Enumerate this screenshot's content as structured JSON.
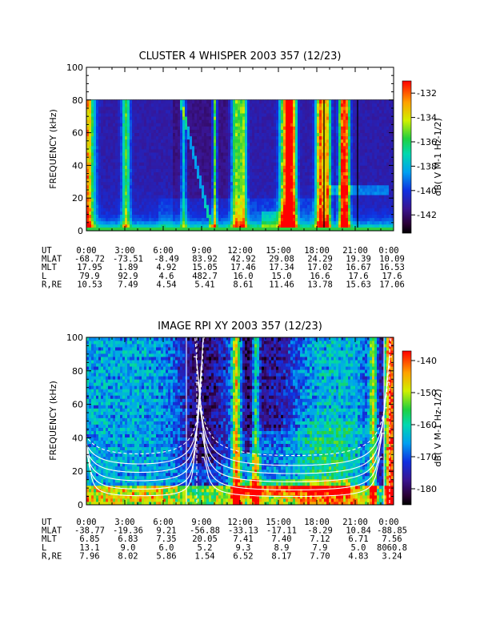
{
  "chart_data": [
    {
      "type": "heatmap",
      "title": "CLUSTER 4 WHISPER 2003 357 (12/23)",
      "ylabel": "FREQUENCY (kHz)",
      "ylim": [
        0,
        100
      ],
      "yticks": [
        0,
        20,
        40,
        60,
        80,
        100
      ],
      "data_top_khz": 80,
      "colorbar": {
        "label": "dB( V M-1 Hz-1/2)",
        "range": [
          -143.5,
          -131
        ],
        "ticks": [
          -132,
          -134,
          -136,
          -138,
          -140,
          -142
        ]
      },
      "ephemeris": [
        {
          "name": "UT",
          "values": [
            "0:00",
            "3:00",
            "6:00",
            "9:00",
            "12:00",
            "15:00",
            "18:00",
            "21:00",
            "0:00"
          ]
        },
        {
          "name": "MLAT",
          "values": [
            "-68.72",
            "-73.51",
            "-8.49",
            "83.92",
            "42.92",
            "29.08",
            "24.29",
            "19.39",
            "10.09"
          ]
        },
        {
          "name": "MLT",
          "values": [
            "17.95",
            "1.89",
            "4.92",
            "15.05",
            "17.46",
            "17.34",
            "17.02",
            "16.67",
            "16.53"
          ]
        },
        {
          "name": "L",
          "values": [
            "79.9",
            "92.9",
            "4.6",
            "482.7",
            "16.0",
            "15.0",
            "16.6",
            "17.6",
            "17.6"
          ]
        },
        {
          "name": "R,RE",
          "values": [
            "10.53",
            "7.49",
            "4.54",
            "5.41",
            "8.61",
            "11.46",
            "13.78",
            "15.63",
            "17.06"
          ]
        }
      ]
    },
    {
      "type": "heatmap",
      "title": "IMAGE RPI XY 2003 357 (12/23)",
      "ylabel": "FREQUENCY (kHz)",
      "ylim": [
        0,
        100
      ],
      "yticks": [
        0,
        20,
        40,
        60,
        80,
        100
      ],
      "colorbar": {
        "label": "dB( V M-1 Hz-1/2)",
        "range": [
          -185,
          -137
        ],
        "ticks": [
          -140,
          -150,
          -160,
          -170,
          -180
        ]
      },
      "ephemeris": [
        {
          "name": "UT",
          "values": [
            "0:00",
            "3:00",
            "6:00",
            "9:00",
            "12:00",
            "15:00",
            "18:00",
            "21:00",
            "0:00"
          ]
        },
        {
          "name": "MLAT",
          "values": [
            "-38.77",
            "-19.36",
            "9.21",
            "-56.88",
            "-33.13",
            "-17.11",
            "-8.29",
            "10.84",
            "-88.85"
          ]
        },
        {
          "name": "MLT",
          "values": [
            "6.85",
            "6.83",
            "7.35",
            "20.05",
            "7.41",
            "7.40",
            "7.12",
            "6.71",
            "7.56"
          ]
        },
        {
          "name": "L",
          "values": [
            "13.1",
            "9.0",
            "6.0",
            "5.2",
            "9.3",
            "8.9",
            "7.9",
            "5.0",
            "8060.8"
          ]
        },
        {
          "name": "R,RE",
          "values": [
            "7.96",
            "8.02",
            "5.86",
            "1.54",
            "6.52",
            "8.17",
            "7.70",
            "4.83",
            "3.24"
          ]
        }
      ]
    }
  ]
}
